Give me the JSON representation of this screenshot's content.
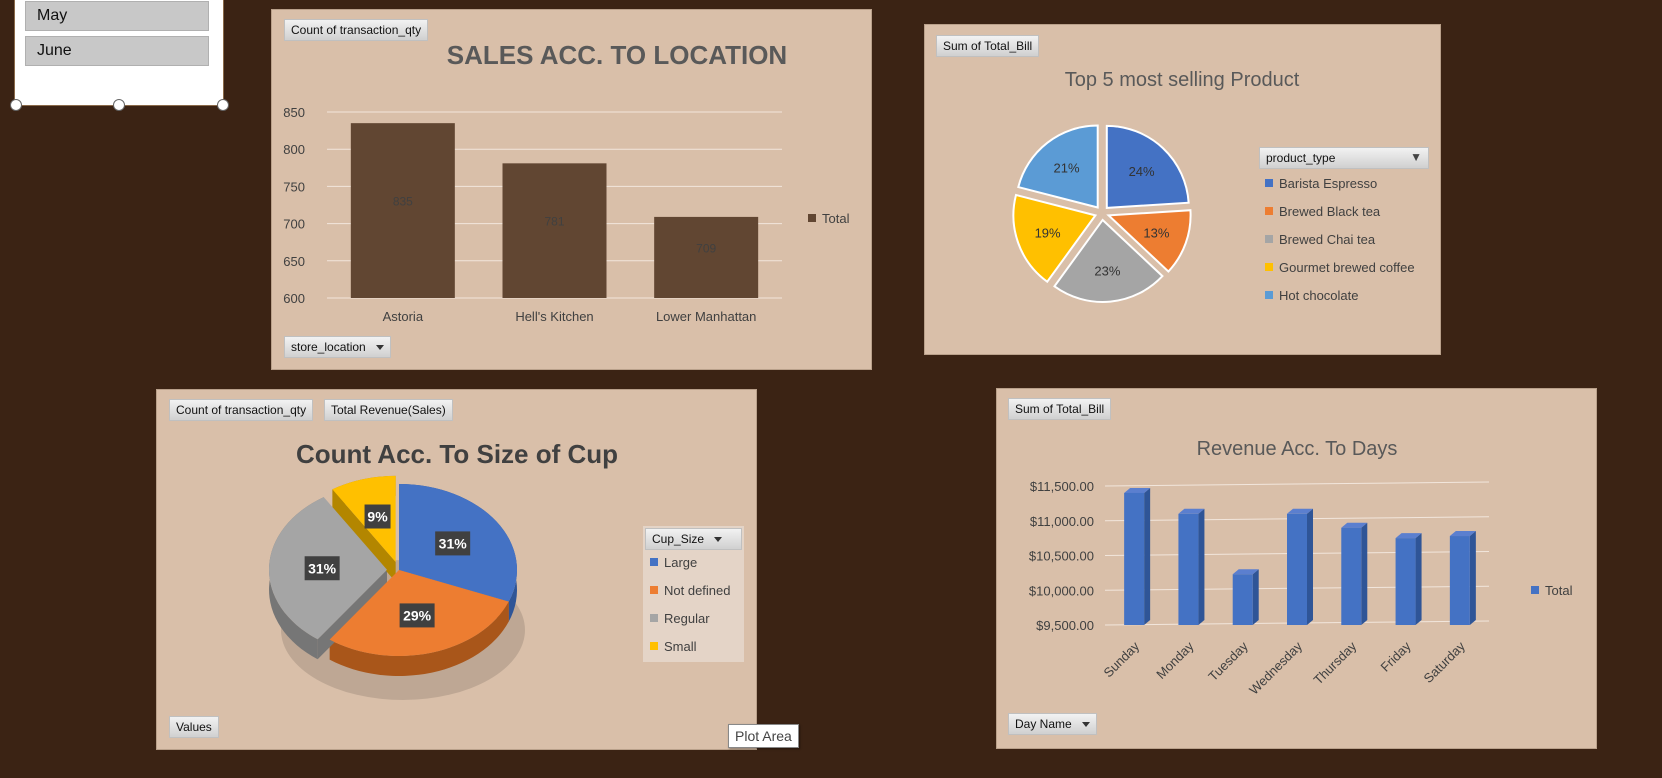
{
  "slicer": {
    "items": [
      "May",
      "June"
    ]
  },
  "chart1": {
    "field_btn": "Count of transaction_qty",
    "axis_btn": "store_location",
    "legend": "Total",
    "colors": {
      "bar": "#614632",
      "label": "#404040"
    }
  },
  "chart2": {
    "field_btn": "Sum of Total_Bill",
    "legend_title": "product_type",
    "colors": [
      "#4472c4",
      "#ed7d31",
      "#a5a5a5",
      "#ffc000",
      "#5b9bd5"
    ]
  },
  "chart3": {
    "field_btn_1": "Count of transaction_qty",
    "field_btn_2": "Total Revenue(Sales)",
    "values_btn": "Values",
    "legend_title": "Cup_Size",
    "colors": [
      "#4472c4",
      "#ed7d31",
      "#a5a5a5",
      "#ffc000"
    ]
  },
  "chart4": {
    "field_btn": "Sum of Total_Bill",
    "axis_btn": "Day Name",
    "legend": "Total",
    "colors": {
      "bar": "#4472c4"
    }
  },
  "tooltip": "Plot Area",
  "chart_data": [
    {
      "type": "bar",
      "title": "SALES ACC. TO LOCATION",
      "categories": [
        "Astoria",
        "Hell's Kitchen",
        "Lower Manhattan"
      ],
      "series": [
        {
          "name": "Total",
          "values": [
            835,
            781,
            709
          ]
        }
      ],
      "data_labels": [
        "835",
        "781",
        "709"
      ],
      "ylim": [
        600,
        850
      ],
      "yticks": [
        "850",
        "800",
        "750",
        "700",
        "650",
        "600"
      ],
      "grid": true,
      "legend_position": "right"
    },
    {
      "type": "pie",
      "title": "Top 5 most selling Product",
      "categories": [
        "Barista Espresso",
        "Brewed Black tea",
        "Brewed Chai tea",
        "Gourmet brewed coffee",
        "Hot chocolate"
      ],
      "values": [
        24,
        13,
        23,
        19,
        21
      ],
      "data_labels": [
        "24%",
        "13%",
        "23%",
        "19%",
        "21%"
      ],
      "legend_position": "right"
    },
    {
      "type": "pie",
      "title": "Count Acc. To Size of Cup",
      "categories": [
        "Large",
        "Not defined",
        "Regular",
        "Small"
      ],
      "values": [
        31,
        29,
        31,
        9
      ],
      "data_labels": [
        "31%",
        "29%",
        "31%",
        "9%"
      ],
      "legend_position": "right"
    },
    {
      "type": "bar",
      "title": "Revenue Acc. To Days",
      "categories": [
        "Sunday",
        "Monday",
        "Tuesday",
        "Wednesday",
        "Thursday",
        "Friday",
        "Saturday"
      ],
      "series": [
        {
          "name": "Total",
          "values": [
            11400,
            11100,
            10230,
            11100,
            10900,
            10750,
            10780
          ]
        }
      ],
      "ylim": [
        9500,
        11500
      ],
      "yticks": [
        "$11,500.00",
        "$11,000.00",
        "$10,500.00",
        "$10,000.00",
        "$9,500.00"
      ],
      "grid": true,
      "legend_position": "right"
    }
  ]
}
